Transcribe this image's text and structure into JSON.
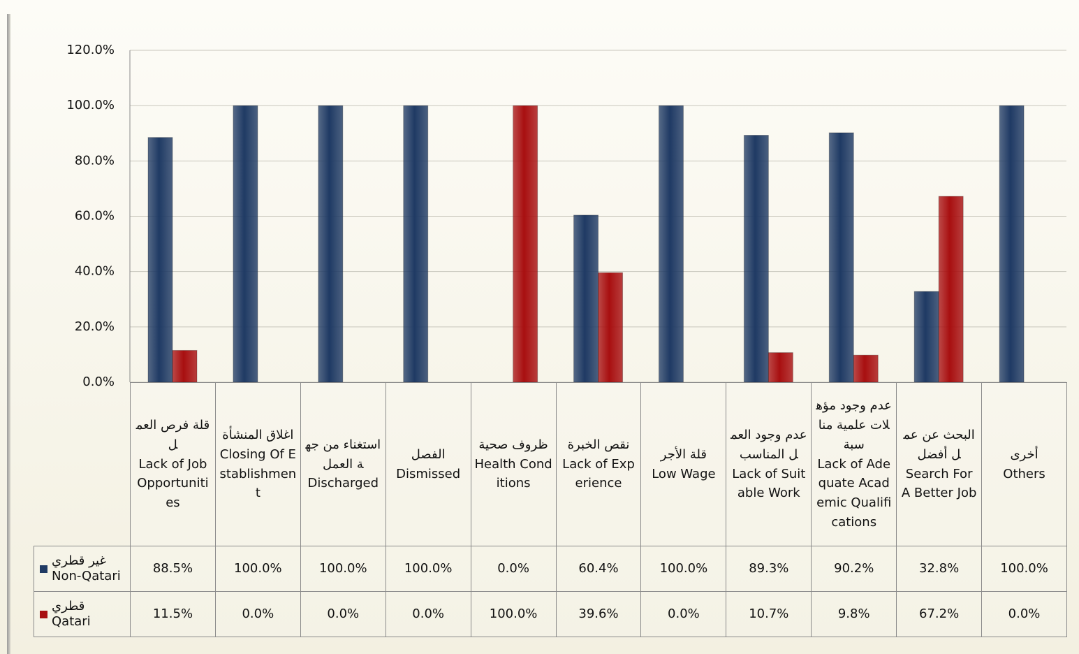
{
  "chart_data": {
    "type": "bar",
    "categories": [
      "قلة فرص العمل\nLack of Job Opportunities",
      "اغلاق المنشأة\nClosing Of Establishment",
      "استغناء من جهة العمل\nDischarged",
      "الفصل\nDismissed",
      "ظروف صحية\nHealth Conditions",
      "نقص الخبرة\nLack of Experience",
      "قلة الأجر\nLow Wage",
      "عدم وجود العمل المناسب\nLack of Suitable Work",
      "عدم وجود مؤهلات علمية مناسبة\nLack of Adequate Academic Qualifications",
      "البحث عن عمل أفضل\nSearch For A Better Job",
      "أخرى\nOthers"
    ],
    "series": [
      {
        "name": "غير قطري\nNon-Qatari",
        "color": "#1f3a64",
        "values": [
          88.5,
          100,
          100,
          100,
          0,
          60.4,
          100,
          89.3,
          90.2,
          32.8,
          100
        ],
        "value_labels": [
          "88.5%",
          "100.0%",
          "100.0%",
          "100.0%",
          "0.0%",
          "60.4%",
          "100.0%",
          "89.3%",
          "90.2%",
          "32.8%",
          "100.0%"
        ]
      },
      {
        "name": "قطري\nQatari",
        "color": "#a80f10",
        "values": [
          11.5,
          0,
          0,
          0,
          100,
          39.6,
          0,
          10.7,
          9.8,
          67.2,
          0
        ],
        "value_labels": [
          "11.5%",
          "0.0%",
          "0.0%",
          "0.0%",
          "100.0%",
          "39.6%",
          "0.0%",
          "10.7%",
          "9.8%",
          "67.2%",
          "0.0%"
        ]
      }
    ],
    "ylim": [
      0,
      120
    ],
    "yticks": [
      {
        "value": 0,
        "label": "0.0%"
      },
      {
        "value": 20,
        "label": "20.0%"
      },
      {
        "value": 40,
        "label": "40.0%"
      },
      {
        "value": 60,
        "label": "60.0%"
      },
      {
        "value": 80,
        "label": "80.0%"
      },
      {
        "value": 100,
        "label": "100.0%"
      },
      {
        "value": 120,
        "label": "120.0%"
      }
    ],
    "grid": true
  }
}
